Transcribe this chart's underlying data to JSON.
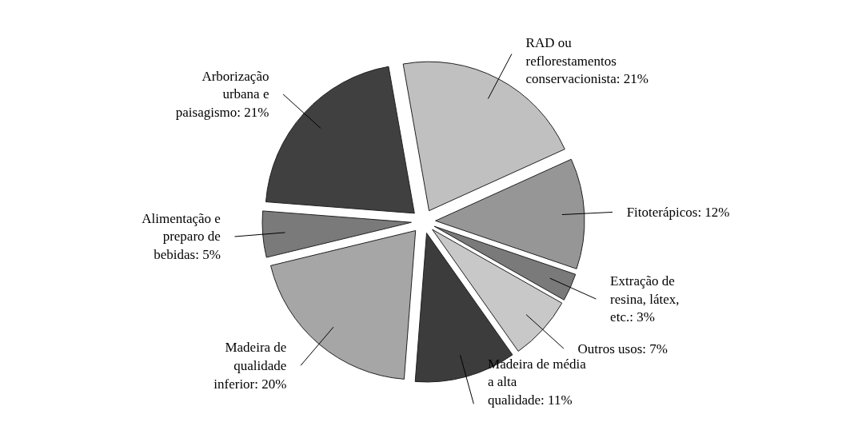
{
  "chart_data": {
    "type": "pie",
    "categories": [
      "RAD ou reflorestamentos conservacionista",
      "Fitoterápicos",
      "Extração de resina, látex, etc.",
      "Outros usos",
      "Madeira de média a alta qualidade",
      "Madeira de qualidade inferior",
      "Alimentação e preparo de bebidas",
      "Arborização urbana e paisagismo"
    ],
    "values": [
      21,
      12,
      3,
      7,
      11,
      20,
      5,
      21
    ],
    "value_labels": [
      "21%",
      "12%",
      "3%",
      "7%",
      "11%",
      "20%",
      "5%",
      "21%"
    ],
    "colors": [
      "#c0c0c0",
      "#969696",
      "#7a7a7a",
      "#c8c8c8",
      "#3c3c3c",
      "#a6a6a6",
      "#7a7a7a",
      "#404040"
    ]
  }
}
